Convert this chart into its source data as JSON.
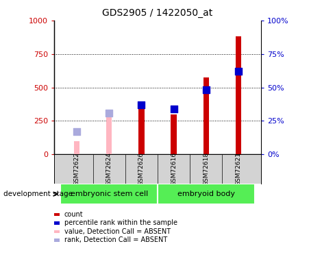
{
  "title": "GDS2905 / 1422050_at",
  "samples": [
    "GSM72622",
    "GSM72624",
    "GSM72626",
    "GSM72616",
    "GSM72618",
    "GSM72621"
  ],
  "count_values": [
    null,
    null,
    360,
    300,
    575,
    880
  ],
  "rank_values": [
    null,
    null,
    37,
    34,
    48,
    62
  ],
  "count_absent": [
    100,
    300,
    null,
    null,
    null,
    null
  ],
  "rank_absent": [
    17,
    31,
    null,
    null,
    null,
    null
  ],
  "groups": [
    {
      "label": "embryonic stem cell",
      "indices": [
        0,
        1,
        2
      ],
      "color": "#55EE55"
    },
    {
      "label": "embryoid body",
      "indices": [
        3,
        4,
        5
      ],
      "color": "#55EE55"
    }
  ],
  "ylim_left": [
    0,
    1000
  ],
  "ylim_right": [
    0,
    100
  ],
  "yticks_left": [
    0,
    250,
    500,
    750,
    1000
  ],
  "ytick_labels_left": [
    "0",
    "250",
    "500",
    "750",
    "1000"
  ],
  "yticks_right": [
    0,
    25,
    50,
    75,
    100
  ],
  "ytick_labels_right": [
    "0%",
    "25%",
    "50%",
    "75%",
    "100%"
  ],
  "color_count": "#CC0000",
  "color_rank": "#0000CC",
  "color_count_absent": "#FFB6C1",
  "color_rank_absent": "#AAAADD",
  "bar_width": 0.18,
  "rank_marker_size": 60,
  "background_labels": "#D3D3D3",
  "dev_stage_label": "development stage",
  "legend_items": [
    {
      "label": "count",
      "color": "#CC0000"
    },
    {
      "label": "percentile rank within the sample",
      "color": "#0000CC"
    },
    {
      "label": "value, Detection Call = ABSENT",
      "color": "#FFB6C1"
    },
    {
      "label": "rank, Detection Call = ABSENT",
      "color": "#AAAADD"
    }
  ]
}
